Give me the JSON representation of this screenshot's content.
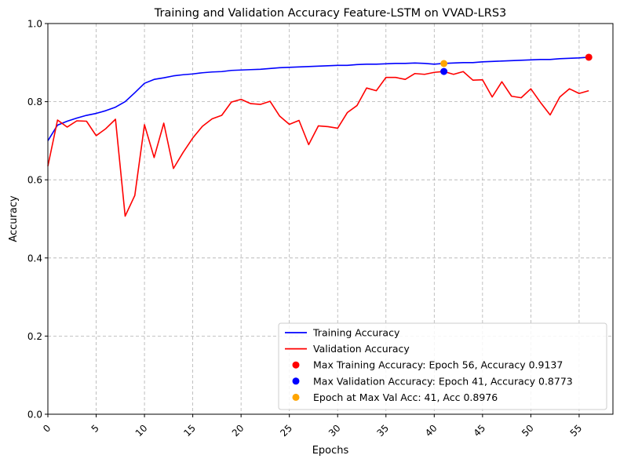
{
  "chart_data": {
    "type": "line",
    "title": "Training and Validation Accuracy Feature-LSTM on VVAD-LRS3",
    "xlabel": "Epochs",
    "ylabel": "Accuracy",
    "xlim": [
      0,
      58.5
    ],
    "ylim": [
      0,
      1.0
    ],
    "xticks": [
      0,
      5,
      10,
      15,
      20,
      25,
      30,
      35,
      40,
      45,
      50,
      55
    ],
    "yticks": [
      0.0,
      0.2,
      0.4,
      0.6,
      0.8,
      1.0
    ],
    "grid": true,
    "legend_position": "lower-right",
    "x": [
      0,
      1,
      2,
      3,
      4,
      5,
      6,
      7,
      8,
      9,
      10,
      11,
      12,
      13,
      14,
      15,
      16,
      17,
      18,
      19,
      20,
      21,
      22,
      23,
      24,
      25,
      26,
      27,
      28,
      29,
      30,
      31,
      32,
      33,
      34,
      35,
      36,
      37,
      38,
      39,
      40,
      41,
      42,
      43,
      44,
      45,
      46,
      47,
      48,
      49,
      50,
      51,
      52,
      53,
      54,
      55,
      56
    ],
    "series": [
      {
        "name": "Training Accuracy",
        "color": "#0000ff",
        "values": [
          0.7,
          0.74,
          0.75,
          0.758,
          0.765,
          0.77,
          0.777,
          0.786,
          0.8,
          0.823,
          0.847,
          0.857,
          0.861,
          0.866,
          0.869,
          0.871,
          0.874,
          0.876,
          0.877,
          0.88,
          0.881,
          0.882,
          0.883,
          0.885,
          0.887,
          0.888,
          0.889,
          0.89,
          0.891,
          0.892,
          0.893,
          0.893,
          0.895,
          0.896,
          0.896,
          0.897,
          0.898,
          0.898,
          0.899,
          0.898,
          0.896,
          0.898,
          0.899,
          0.9,
          0.9,
          0.902,
          0.903,
          0.904,
          0.905,
          0.906,
          0.907,
          0.908,
          0.908,
          0.91,
          0.911,
          0.912,
          0.9137
        ]
      },
      {
        "name": "Validation Accuracy",
        "color": "#ff0000",
        "values": [
          0.635,
          0.753,
          0.735,
          0.751,
          0.75,
          0.713,
          0.731,
          0.755,
          0.507,
          0.56,
          0.741,
          0.657,
          0.745,
          0.629,
          0.67,
          0.707,
          0.737,
          0.756,
          0.765,
          0.799,
          0.806,
          0.795,
          0.793,
          0.801,
          0.763,
          0.742,
          0.752,
          0.69,
          0.738,
          0.736,
          0.732,
          0.772,
          0.79,
          0.835,
          0.828,
          0.862,
          0.862,
          0.857,
          0.872,
          0.87,
          0.875,
          0.8773,
          0.87,
          0.877,
          0.855,
          0.856,
          0.812,
          0.851,
          0.814,
          0.81,
          0.833,
          0.798,
          0.766,
          0.812,
          0.833,
          0.821,
          0.828
        ]
      }
    ],
    "markers": [
      {
        "label": "Max Training Accuracy: Epoch 56, Accuracy 0.9137",
        "x": 56,
        "y": 0.9137,
        "color": "#ff0000"
      },
      {
        "label": "Max Validation Accuracy: Epoch 41, Accuracy 0.8773",
        "x": 41,
        "y": 0.8773,
        "color": "#0000ff"
      },
      {
        "label": "Epoch at Max Val Acc: 41, Acc 0.8976",
        "x": 41,
        "y": 0.8976,
        "color": "#ffa500"
      }
    ]
  }
}
